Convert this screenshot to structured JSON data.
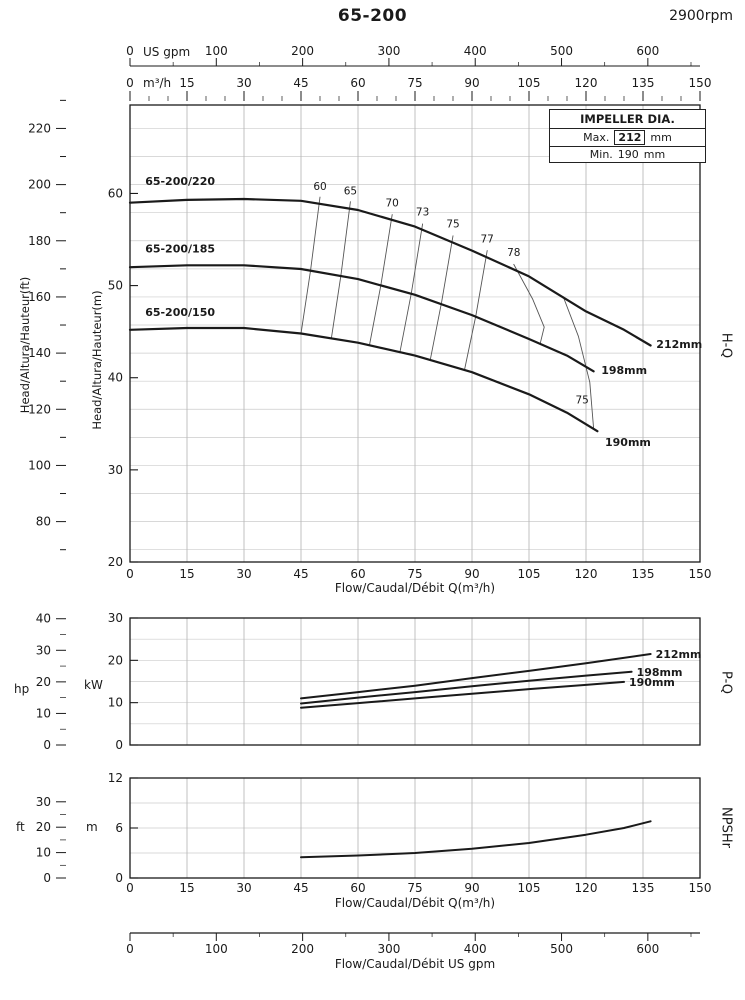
{
  "header": {
    "title": "65-200",
    "rpm": "2900rpm"
  },
  "legend": {
    "title": "IMPELLER DIA.",
    "max_label": "Max.",
    "max_value": "212",
    "min_label": "Min.",
    "min_value": "190",
    "unit": "mm"
  },
  "labels": {
    "head_ft": "Head/Altura/Hauteur(ft)",
    "head_m": "Head/Altura/Hauteur(m)",
    "hq": "H-Q",
    "pq": "P-Q",
    "npshr": "NPSHr",
    "hp": "hp",
    "kw": "kW",
    "ft": "ft",
    "m": "m",
    "us_gpm": "US gpm",
    "m3h": "m³/h",
    "flow_m3h": "Flow/Caudal/Débit Q(m³/h)",
    "flow_gpm": "Flow/Caudal/Débit  US gpm"
  },
  "chart_data": [
    {
      "id": "hq",
      "type": "line",
      "title": "H-Q head vs flow curves at 2900rpm",
      "xlabel": "Flow/Caudal/Débit Q(m³/h)",
      "ylabel": "Head/Altura/Hauteur(m)",
      "xlim": [
        0,
        150
      ],
      "ylim_m": [
        20,
        69.6
      ],
      "x_ticks_m3h": [
        0,
        15,
        30,
        45,
        60,
        75,
        90,
        105,
        120,
        135,
        150
      ],
      "x_ticks_usgpm": [
        0,
        100,
        200,
        300,
        400,
        500,
        600
      ],
      "y_ticks_m": [
        20,
        30,
        40,
        50,
        60
      ],
      "y_ticks_ft": [
        80,
        100,
        120,
        140,
        160,
        180,
        200,
        220
      ],
      "grid": true,
      "curves": [
        {
          "label": "65-200/220",
          "end_label": "212mm",
          "label_pos": [
            4,
            60.9
          ],
          "end_label_pos": [
            138.5,
            43.2
          ],
          "points": [
            [
              0,
              59
            ],
            [
              15,
              59.3
            ],
            [
              30,
              59.4
            ],
            [
              45,
              59.2
            ],
            [
              60,
              58.2
            ],
            [
              75,
              56.4
            ],
            [
              90,
              53.8
            ],
            [
              105,
              51
            ],
            [
              120,
              47.2
            ],
            [
              130,
              45.2
            ],
            [
              137,
              43.5
            ]
          ]
        },
        {
          "label": "65-200/185",
          "end_label": "198mm",
          "label_pos": [
            4,
            53.6
          ],
          "end_label_pos": [
            124,
            40.4
          ],
          "points": [
            [
              0,
              52
            ],
            [
              15,
              52.2
            ],
            [
              30,
              52.2
            ],
            [
              45,
              51.8
            ],
            [
              60,
              50.7
            ],
            [
              75,
              49
            ],
            [
              90,
              46.8
            ],
            [
              105,
              44.2
            ],
            [
              115,
              42.4
            ],
            [
              122,
              40.7
            ]
          ]
        },
        {
          "label": "65-200/150",
          "end_label": "190mm",
          "label_pos": [
            4,
            46.7
          ],
          "end_label_pos": [
            125,
            32.6
          ],
          "points": [
            [
              0,
              45.2
            ],
            [
              15,
              45.4
            ],
            [
              30,
              45.4
            ],
            [
              45,
              44.8
            ],
            [
              60,
              43.8
            ],
            [
              75,
              42.4
            ],
            [
              90,
              40.6
            ],
            [
              105,
              38.2
            ],
            [
              115,
              36.2
            ],
            [
              123,
              34.2
            ]
          ]
        }
      ],
      "efficiency_lines": [
        {
          "label": "60",
          "label_pos": [
            50,
            60.4
          ],
          "points": [
            [
              50,
              59.6
            ],
            [
              47.5,
              51.6
            ],
            [
              45,
              44.8
            ]
          ]
        },
        {
          "label": "65",
          "label_pos": [
            58,
            59.9
          ],
          "points": [
            [
              58,
              59.1
            ],
            [
              55.5,
              51.1
            ],
            [
              53,
              44.3
            ]
          ]
        },
        {
          "label": "70",
          "label_pos": [
            69,
            58.6
          ],
          "points": [
            [
              69,
              57.7
            ],
            [
              66,
              50
            ],
            [
              63,
              43.5
            ]
          ]
        },
        {
          "label": "73",
          "label_pos": [
            77,
            57.6
          ],
          "points": [
            [
              77,
              56.7
            ],
            [
              74,
              49.1
            ],
            [
              71,
              42.7
            ]
          ]
        },
        {
          "label": "75",
          "label_pos": [
            85,
            56.3
          ],
          "points": [
            [
              85,
              55.4
            ],
            [
              82,
              48.2
            ],
            [
              79,
              41.9
            ]
          ]
        },
        {
          "label": "77",
          "label_pos": [
            94,
            54.7
          ],
          "points": [
            [
              94,
              53.8
            ],
            [
              91,
              46.7
            ],
            [
              88,
              40.8
            ]
          ]
        },
        {
          "label": "78",
          "label_pos": [
            101,
            53.2
          ],
          "points": [
            [
              101,
              52.3
            ],
            [
              106,
              48.5
            ],
            [
              109,
              45.5
            ],
            [
              108,
              43.8
            ]
          ]
        },
        {
          "label": "75",
          "label_pos": [
            119,
            37.2
          ],
          "points": [
            [
              114,
              48.8
            ],
            [
              118,
              44.5
            ],
            [
              121,
              39.5
            ],
            [
              122,
              34.5
            ]
          ]
        }
      ]
    },
    {
      "id": "pq",
      "type": "line",
      "title": "P-Q power vs flow curves",
      "ylabel": "kW",
      "ylim_kw": [
        0,
        30
      ],
      "y_ticks_kw": [
        0,
        10,
        20,
        30
      ],
      "y_ticks_hp": [
        0,
        10,
        20,
        30,
        40
      ],
      "grid": true,
      "curves": [
        {
          "end_label": "212mm",
          "points": [
            [
              45,
              11
            ],
            [
              60,
              12.5
            ],
            [
              75,
              14
            ],
            [
              90,
              15.8
            ],
            [
              105,
              17.5
            ],
            [
              120,
              19.3
            ],
            [
              137,
              21.5
            ]
          ]
        },
        {
          "end_label": "198mm",
          "points": [
            [
              45,
              9.8
            ],
            [
              60,
              11.2
            ],
            [
              75,
              12.5
            ],
            [
              90,
              13.9
            ],
            [
              105,
              15.2
            ],
            [
              120,
              16.4
            ],
            [
              132,
              17.3
            ]
          ]
        },
        {
          "end_label": "190mm",
          "points": [
            [
              45,
              8.8
            ],
            [
              60,
              9.9
            ],
            [
              75,
              11
            ],
            [
              90,
              12.1
            ],
            [
              105,
              13.2
            ],
            [
              120,
              14.2
            ],
            [
              130,
              14.9
            ]
          ]
        }
      ]
    },
    {
      "id": "npshr",
      "type": "line",
      "title": "NPSHr vs flow curve",
      "ylabel": "m",
      "ylim_m": [
        0,
        12
      ],
      "y_ticks_m": [
        0,
        6,
        12
      ],
      "y_ticks_ft": [
        0,
        10,
        20,
        30
      ],
      "grid": true,
      "curves": [
        {
          "end_label": "",
          "points": [
            [
              45,
              2.5
            ],
            [
              60,
              2.7
            ],
            [
              75,
              3
            ],
            [
              90,
              3.5
            ],
            [
              105,
              4.2
            ],
            [
              120,
              5.2
            ],
            [
              130,
              6
            ],
            [
              137,
              6.8
            ]
          ]
        }
      ]
    }
  ]
}
